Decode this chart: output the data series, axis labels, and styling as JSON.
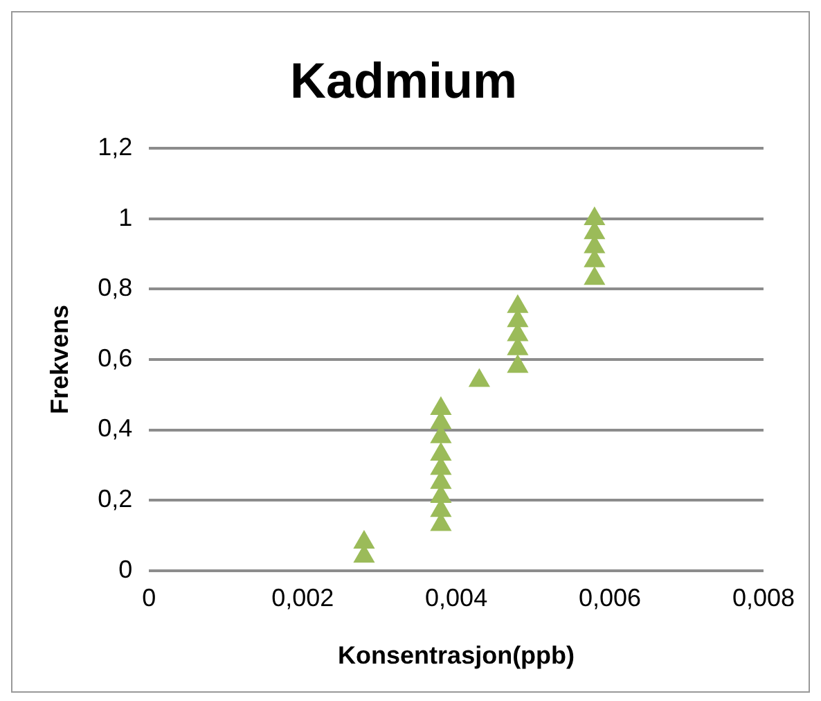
{
  "chart_data": {
    "type": "scatter",
    "title": "Kadmium",
    "xlabel": "Konsentrasjon(ppb)",
    "ylabel": "Frekvens",
    "x": [
      0.0028,
      0.0028,
      0.0038,
      0.0038,
      0.0038,
      0.0038,
      0.0038,
      0.0038,
      0.0038,
      0.0038,
      0.0038,
      0.0043,
      0.0048,
      0.0048,
      0.0048,
      0.0048,
      0.0048,
      0.0058,
      0.0058,
      0.0058,
      0.0058,
      0.0058
    ],
    "series": [
      {
        "color": "#9bbb59",
        "values": [
          0.04,
          0.08,
          0.13,
          0.17,
          0.21,
          0.25,
          0.29,
          0.33,
          0.38,
          0.42,
          0.46,
          0.54,
          0.58,
          0.63,
          0.67,
          0.71,
          0.75,
          0.83,
          0.88,
          0.92,
          0.96,
          1
        ]
      }
    ],
    "xlim": [
      0,
      0.008
    ],
    "xticks": [
      {
        "value": 0,
        "label": "0"
      },
      {
        "value": 0.002,
        "label": "0,002"
      },
      {
        "value": 0.004,
        "label": "0,004"
      },
      {
        "value": 0.006,
        "label": "0,006"
      },
      {
        "value": 0.008,
        "label": "0,008"
      }
    ],
    "ylim": [
      0,
      1.2
    ],
    "yticks": [
      {
        "value": 0,
        "label": "0"
      },
      {
        "value": 0.2,
        "label": "0,2"
      },
      {
        "value": 0.4,
        "label": "0,4"
      },
      {
        "value": 0.6,
        "label": "0,6"
      },
      {
        "value": 0.8,
        "label": "0,8"
      },
      {
        "value": 1,
        "label": "1"
      },
      {
        "value": 1.2,
        "label": "1,2"
      }
    ],
    "grid": "y",
    "legend": false,
    "marker": "triangle"
  }
}
